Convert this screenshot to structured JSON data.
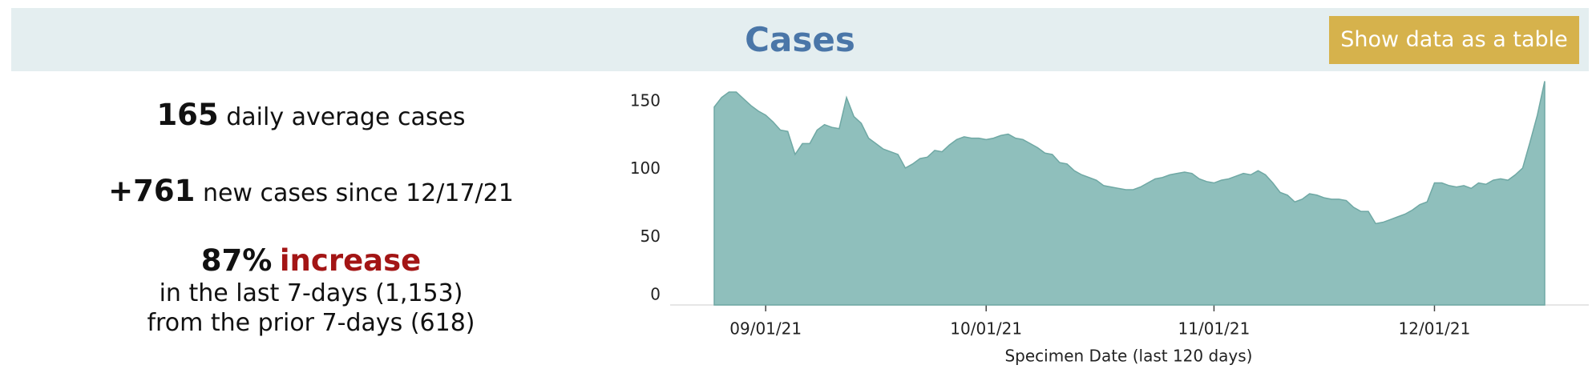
{
  "header": {
    "title": "Cases",
    "button": "Show data as a table"
  },
  "stats": {
    "average_value": "165",
    "average_text": "daily average cases",
    "new_value": "+761",
    "new_text": "new cases since 12/17/21",
    "change_value": "87%",
    "change_word": "increase",
    "last_line": "in the last 7-days (1,153)",
    "prior_line": "from the prior 7-days (618)"
  },
  "chart_data": {
    "type": "area",
    "x_label": "Specimen Date (last 120 days)",
    "color": "#8fbfbc",
    "line_color": "#6fa8a4",
    "x": [
      "08/25/21",
      "08/26/21",
      "08/27/21",
      "08/28/21",
      "08/29/21",
      "08/30/21",
      "08/31/21",
      "09/01/21",
      "09/02/21",
      "09/03/21",
      "09/04/21",
      "09/05/21",
      "09/06/21",
      "09/07/21",
      "09/08/21",
      "09/09/21",
      "09/10/21",
      "09/11/21",
      "09/12/21",
      "09/13/21",
      "09/14/21",
      "09/15/21",
      "09/16/21",
      "09/17/21",
      "09/18/21",
      "09/19/21",
      "09/20/21",
      "09/21/21",
      "09/22/21",
      "09/23/21",
      "09/24/21",
      "09/25/21",
      "09/26/21",
      "09/27/21",
      "09/28/21",
      "09/29/21",
      "09/30/21",
      "10/01/21",
      "10/02/21",
      "10/03/21",
      "10/04/21",
      "10/05/21",
      "10/06/21",
      "10/07/21",
      "10/08/21",
      "10/09/21",
      "10/10/21",
      "10/11/21",
      "10/12/21",
      "10/13/21",
      "10/14/21",
      "10/15/21",
      "10/16/21",
      "10/17/21",
      "10/18/21",
      "10/19/21",
      "10/20/21",
      "10/21/21",
      "10/22/21",
      "10/23/21",
      "10/24/21",
      "10/25/21",
      "10/26/21",
      "10/27/21",
      "10/28/21",
      "10/29/21",
      "10/30/21",
      "10/31/21",
      "11/01/21",
      "11/02/21",
      "11/03/21",
      "11/04/21",
      "11/05/21",
      "11/06/21",
      "11/07/21",
      "11/08/21",
      "11/09/21",
      "11/10/21",
      "11/11/21",
      "11/12/21",
      "11/13/21",
      "11/14/21",
      "11/15/21",
      "11/16/21",
      "11/17/21",
      "11/18/21",
      "11/19/21",
      "11/20/21",
      "11/21/21",
      "11/22/21",
      "11/23/21",
      "11/24/21",
      "11/25/21",
      "11/26/21",
      "11/27/21",
      "11/28/21",
      "11/29/21",
      "11/30/21",
      "12/01/21",
      "12/02/21",
      "12/03/21",
      "12/04/21",
      "12/05/21",
      "12/06/21",
      "12/07/21",
      "12/08/21",
      "12/09/21",
      "12/10/21",
      "12/11/21",
      "12/12/21",
      "12/13/21",
      "12/14/21",
      "12/15/21",
      "12/16/21"
    ],
    "values": [
      146,
      153,
      157,
      157,
      152,
      147,
      143,
      140,
      135,
      129,
      128,
      111,
      119,
      119,
      129,
      133,
      131,
      130,
      153,
      139,
      134,
      123,
      119,
      115,
      113,
      111,
      101,
      104,
      108,
      109,
      114,
      113,
      118,
      122,
      124,
      123,
      123,
      122,
      123,
      125,
      126,
      123,
      122,
      119,
      116,
      112,
      111,
      105,
      104,
      99,
      96,
      94,
      92,
      88,
      87,
      86,
      85,
      85,
      87,
      90,
      93,
      94,
      96,
      97,
      98,
      97,
      93,
      91,
      90,
      92,
      93,
      95,
      97,
      96,
      99,
      96,
      90,
      83,
      81,
      76,
      78,
      82,
      81,
      79,
      78,
      78,
      77,
      72,
      69,
      69,
      60,
      61,
      63,
      65,
      67,
      70,
      74,
      76,
      90,
      90,
      88,
      87,
      88,
      86,
      90,
      89,
      92,
      93,
      92,
      96,
      101,
      120,
      140,
      165
    ],
    "xlim": [
      "08/19/21",
      "12/22/21"
    ],
    "xticks": [
      "09/01/21",
      "10/01/21",
      "11/01/21",
      "12/01/21"
    ],
    "ylim": [
      0,
      170
    ],
    "yticks": [
      0,
      50,
      100,
      150
    ]
  }
}
